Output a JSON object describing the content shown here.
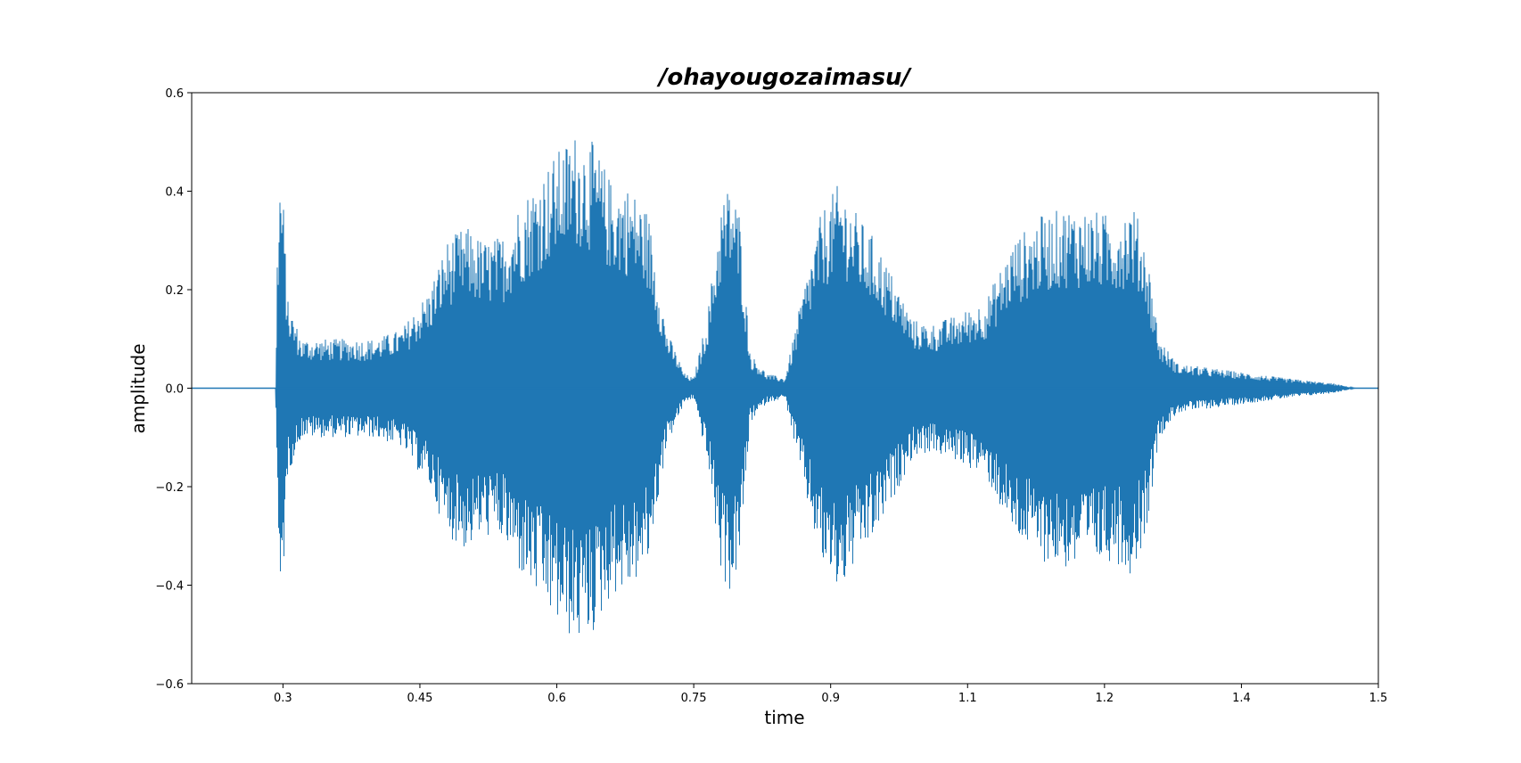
{
  "chart_data": {
    "type": "line",
    "title": "/ohayougozaimasu/",
    "xlabel": "time",
    "ylabel": "amplitude",
    "xlim": [
      0.2,
      1.5
    ],
    "ylim": [
      -0.6,
      0.6
    ],
    "x_ticks": [
      0.3,
      0.45,
      0.6,
      0.75,
      0.9,
      1.05,
      1.2,
      1.35,
      1.5
    ],
    "x_tick_labels": [
      "0.3",
      "0.45",
      "0.6",
      "0.75",
      "0.9",
      "1.1",
      "1.2",
      "1.4",
      "1.5"
    ],
    "y_ticks": [
      0.6,
      0.4,
      0.2,
      0.0,
      -0.2,
      -0.4,
      -0.6
    ],
    "y_tick_labels": [
      "0.6",
      "0.4",
      "0.2",
      "0.0",
      "−0.2",
      "−0.4",
      "−0.6"
    ],
    "grid": false,
    "series": [
      {
        "color": "#1f77b4",
        "envelope_peak_amplitude": [
          [
            0.2,
            0.0
          ],
          [
            0.292,
            0.0
          ],
          [
            0.294,
            0.31
          ],
          [
            0.297,
            0.45
          ],
          [
            0.3,
            0.4
          ],
          [
            0.305,
            0.18
          ],
          [
            0.32,
            0.1
          ],
          [
            0.36,
            0.1
          ],
          [
            0.4,
            0.1
          ],
          [
            0.43,
            0.12
          ],
          [
            0.46,
            0.2
          ],
          [
            0.48,
            0.3
          ],
          [
            0.5,
            0.33
          ],
          [
            0.52,
            0.3
          ],
          [
            0.54,
            0.31
          ],
          [
            0.56,
            0.38
          ],
          [
            0.58,
            0.43
          ],
          [
            0.6,
            0.48
          ],
          [
            0.62,
            0.52
          ],
          [
            0.64,
            0.5
          ],
          [
            0.66,
            0.42
          ],
          [
            0.68,
            0.41
          ],
          [
            0.7,
            0.36
          ],
          [
            0.72,
            0.12
          ],
          [
            0.74,
            0.03
          ],
          [
            0.75,
            0.02
          ],
          [
            0.765,
            0.15
          ],
          [
            0.78,
            0.38
          ],
          [
            0.79,
            0.42
          ],
          [
            0.8,
            0.36
          ],
          [
            0.812,
            0.07
          ],
          [
            0.83,
            0.03
          ],
          [
            0.85,
            0.02
          ],
          [
            0.87,
            0.2
          ],
          [
            0.89,
            0.36
          ],
          [
            0.91,
            0.42
          ],
          [
            0.93,
            0.35
          ],
          [
            0.95,
            0.3
          ],
          [
            0.97,
            0.22
          ],
          [
            0.99,
            0.14
          ],
          [
            1.01,
            0.13
          ],
          [
            1.04,
            0.15
          ],
          [
            1.07,
            0.18
          ],
          [
            1.1,
            0.3
          ],
          [
            1.13,
            0.35
          ],
          [
            1.16,
            0.37
          ],
          [
            1.19,
            0.36
          ],
          [
            1.21,
            0.35
          ],
          [
            1.23,
            0.38
          ],
          [
            1.245,
            0.3
          ],
          [
            1.26,
            0.1
          ],
          [
            1.28,
            0.05
          ],
          [
            1.32,
            0.04
          ],
          [
            1.36,
            0.03
          ],
          [
            1.4,
            0.02
          ],
          [
            1.45,
            0.01
          ],
          [
            1.475,
            0.0
          ],
          [
            1.5,
            0.0
          ]
        ]
      }
    ]
  }
}
